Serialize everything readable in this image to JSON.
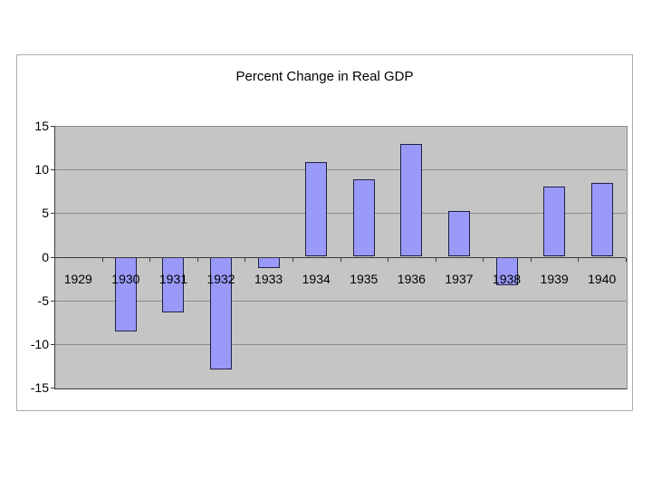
{
  "page": {
    "background": "#ffffff"
  },
  "chart": {
    "title": "Percent Change in Real GDP",
    "colors": {
      "frame_border": "#aeaeae",
      "plot_background": "#c5c5c5",
      "gridline": "#8a8a8a",
      "axis": "#3a3a3a",
      "bar_fill": "#9999f8",
      "bar_border": "#202046",
      "text": "#000000"
    }
  },
  "chart_data": {
    "type": "bar",
    "title": "Percent Change in Real GDP",
    "categories": [
      "1929",
      "1930",
      "1931",
      "1932",
      "1933",
      "1934",
      "1935",
      "1936",
      "1937",
      "1938",
      "1939",
      "1940"
    ],
    "values": [
      0,
      -8.6,
      -6.4,
      -12.9,
      -1.3,
      10.8,
      8.9,
      12.9,
      5.2,
      -3.3,
      8.0,
      8.5
    ],
    "xlabel": "",
    "ylabel": "",
    "ylim": [
      -15,
      15
    ],
    "yticks": [
      15,
      10,
      5,
      0,
      -5,
      -10,
      -15
    ],
    "grid": true,
    "legend": false
  }
}
